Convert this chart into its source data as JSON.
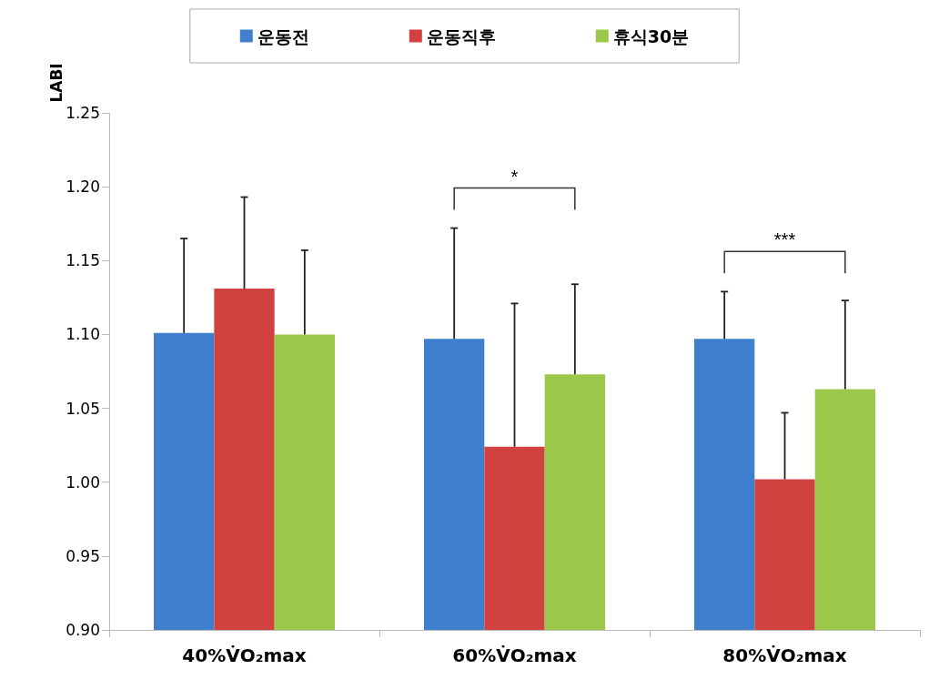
{
  "chart_data": {
    "type": "bar",
    "ylabel": "LABI",
    "categories": [
      "40%V̇O₂max",
      "60%V̇O₂max",
      "80%V̇O₂max"
    ],
    "series": [
      {
        "name": "운동전",
        "color": "#3f7fce",
        "values": [
          1.101,
          1.097,
          1.097
        ],
        "errors": [
          [
            1.101,
            1.165
          ],
          [
            1.097,
            1.172
          ],
          [
            1.097,
            1.129
          ]
        ]
      },
      {
        "name": "운동직후",
        "color": "#d0413f",
        "values": [
          1.131,
          1.024,
          1.002
        ],
        "errors": [
          [
            1.131,
            1.193
          ],
          [
            1.024,
            1.121
          ],
          [
            1.002,
            1.047
          ]
        ]
      },
      {
        "name": "휴식30분",
        "color": "#9bc84a",
        "values": [
          1.1,
          1.073,
          1.063
        ],
        "errors": [
          [
            1.1,
            1.157
          ],
          [
            1.073,
            1.134
          ],
          [
            1.063,
            1.123
          ]
        ]
      }
    ],
    "ylim": [
      0.9,
      1.25
    ],
    "yticks": [
      {
        "value": 0.9,
        "label": "0.90"
      },
      {
        "value": 0.95,
        "label": "0.95"
      },
      {
        "value": 1.0,
        "label": "1.00"
      },
      {
        "value": 1.05,
        "label": "1.05"
      },
      {
        "value": 1.1,
        "label": "1.10"
      },
      {
        "value": 1.15,
        "label": "1.15"
      },
      {
        "value": 1.2,
        "label": "1.20"
      },
      {
        "value": 1.25,
        "label": "1.25"
      }
    ],
    "annotations": [
      "*",
      "***"
    ],
    "grid": false,
    "legend": "top"
  }
}
